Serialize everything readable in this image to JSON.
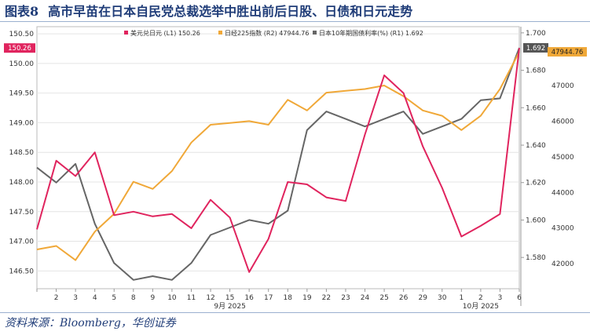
{
  "title": {
    "number": "图表8",
    "text": "高市早苗在日本自民党总裁选举中胜出前后日股、日债和日元走势"
  },
  "source": "资料来源：Bloomberg，华创证券",
  "chart_data": {
    "type": "line",
    "categories": [
      "1",
      "2",
      "3",
      "4",
      "5",
      "8",
      "9",
      "10",
      "11",
      "12",
      "15",
      "16",
      "17",
      "18",
      "19",
      "22",
      "23",
      "24",
      "25",
      "26",
      "29",
      "30",
      "1",
      "2",
      "3",
      "6"
    ],
    "month_labels": [
      {
        "text": "9月 2025",
        "category_index": 10
      },
      {
        "text": "10月 2025",
        "category_index": 23
      }
    ],
    "category_labels": [
      "",
      "2",
      "3",
      "4",
      "5",
      "8",
      "9",
      "10",
      "11",
      "12",
      "15",
      "16",
      "17",
      "18",
      "19",
      "22",
      "23",
      "24",
      "25",
      "26",
      "29",
      "30",
      "1",
      "2",
      "3",
      "6"
    ],
    "series": [
      {
        "name": "美元兑日元 (L1) 150.26",
        "axis": "L1",
        "color": "#e0245e",
        "values": [
          147.2,
          148.36,
          148.1,
          148.5,
          147.44,
          147.5,
          147.42,
          147.46,
          147.22,
          147.7,
          147.4,
          146.48,
          147.04,
          148.0,
          147.96,
          147.74,
          147.68,
          148.8,
          149.8,
          149.5,
          148.6,
          147.9,
          147.08,
          147.26,
          147.46,
          150.26
        ]
      },
      {
        "name": "日经225指数 (R2) 47944.76",
        "axis": "R2",
        "color": "#f0a838",
        "values": [
          42400,
          42500,
          42100,
          42900,
          43400,
          44300,
          44100,
          44600,
          45400,
          45900,
          45950,
          46000,
          45900,
          46600,
          46300,
          46800,
          46850,
          46900,
          47000,
          46700,
          46300,
          46150,
          45750,
          46150,
          46900,
          47944.76
        ]
      },
      {
        "name": "日本10年期国债利率(%) (R1) 1.692",
        "axis": "R1",
        "color": "#666666",
        "values": [
          1.628,
          1.62,
          1.63,
          1.598,
          1.577,
          1.568,
          1.57,
          1.568,
          1.577,
          1.592,
          1.596,
          1.6,
          1.598,
          1.605,
          1.648,
          1.658,
          1.654,
          1.65,
          1.654,
          1.658,
          1.646,
          1.65,
          1.654,
          1.664,
          1.665,
          1.692
        ]
      }
    ],
    "axes": {
      "L1": {
        "ylim": [
          146.2,
          150.62
        ],
        "ticks": [
          "146.50",
          "147.00",
          "147.50",
          "148.00",
          "148.50",
          "149.00",
          "149.50",
          "150.00",
          "150.50"
        ]
      },
      "R1": {
        "ylim": [
          1.5633,
          1.7033
        ],
        "ticks": [
          "1.580",
          "1.600",
          "1.620",
          "1.640",
          "1.660",
          "1.680",
          "1.700"
        ]
      },
      "R2": {
        "ylim": [
          41300,
          48650
        ],
        "ticks": [
          "42000",
          "43000",
          "44000",
          "45000",
          "46000",
          "47000"
        ]
      }
    },
    "last_value_tags": [
      {
        "text": "150.26",
        "axis": "L1",
        "color": "#e0245e"
      },
      {
        "text": "1.692",
        "axis": "R1",
        "color": "#555555"
      },
      {
        "text": "47944.76",
        "axis": "R2",
        "color": "#f0a838"
      }
    ],
    "grid": true,
    "legend_position": "top"
  }
}
